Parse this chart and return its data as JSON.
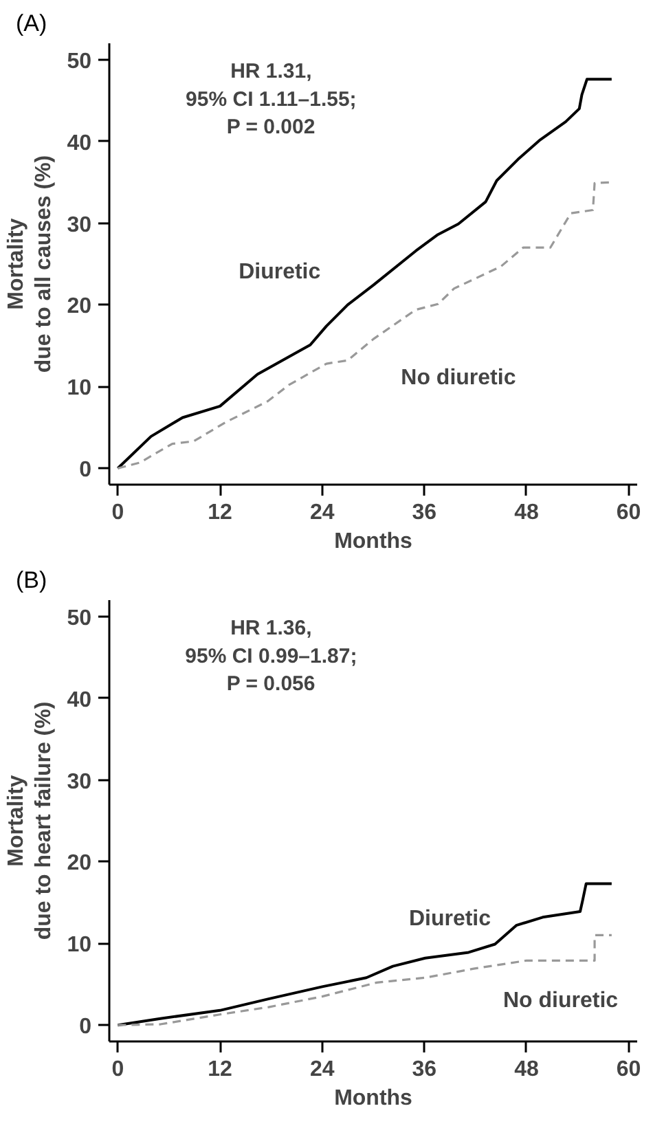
{
  "chart_data": [
    {
      "type": "line",
      "title": "(A)",
      "xlabel": "Months",
      "ylabel": "Mortality\ndue to all causes (%)",
      "annotations": [
        "HR 1.31,\n95% CI 1.11–1.55;\nP = 0.002"
      ],
      "xlim": [
        -1,
        61
      ],
      "xticks": [
        0,
        12,
        24,
        36,
        48,
        60
      ],
      "ylim": [
        -2,
        52
      ],
      "yticks": [
        0,
        10,
        20,
        30,
        40,
        50
      ],
      "legend": false,
      "grid": false,
      "series": [
        {
          "name": "Diuretic",
          "color": "#000000",
          "line_style": "solid",
          "x": [
            0,
            3.9,
            7.6,
            12,
            16.4,
            22.6,
            24.5,
            27,
            30,
            35,
            37.6,
            40,
            43.2,
            44.5,
            47,
            49.5,
            52.6,
            54.2,
            54.5,
            55.1,
            58
          ],
          "values": [
            0,
            3.9,
            6.2,
            7.6,
            11.5,
            15.1,
            17.4,
            20,
            22.4,
            26.6,
            28.6,
            29.9,
            32.6,
            35.2,
            37.8,
            40.1,
            42.4,
            44,
            45.7,
            47.6,
            47.6
          ]
        },
        {
          "name": "No diuretic",
          "color": "#999999",
          "line_style": "dashed",
          "x": [
            0,
            2.6,
            6.4,
            8.9,
            12.6,
            17.6,
            20.1,
            24.5,
            27,
            30,
            35,
            37.6,
            39.5,
            45,
            47.6,
            50.8,
            53.2,
            55.8,
            56,
            58
          ],
          "values": [
            0,
            0.7,
            3,
            3.3,
            5.6,
            8.2,
            10.2,
            12.8,
            13.2,
            15.8,
            19.4,
            20.1,
            22,
            24.7,
            27,
            27,
            31.2,
            31.6,
            34.9,
            35
          ]
        }
      ]
    },
    {
      "type": "line",
      "title": "(B)",
      "xlabel": "Months",
      "ylabel": "Mortality\ndue to heart failure (%)",
      "annotations": [
        "HR 1.36,\n95% CI 0.99–1.87;\nP = 0.056"
      ],
      "xlim": [
        -1,
        61
      ],
      "xticks": [
        0,
        12,
        24,
        36,
        48,
        60
      ],
      "ylim": [
        -2,
        52
      ],
      "yticks": [
        0,
        10,
        20,
        30,
        40,
        50
      ],
      "legend": false,
      "grid": false,
      "series": [
        {
          "name": "Diuretic",
          "color": "#000000",
          "line_style": "solid",
          "x": [
            0,
            5,
            12,
            17.7,
            24,
            29.2,
            32.3,
            36.1,
            41.2,
            44.3,
            46.8,
            49.9,
            54.3,
            54.6,
            55,
            58
          ],
          "values": [
            0,
            0.8,
            1.8,
            3.2,
            4.7,
            5.8,
            7.2,
            8.2,
            8.9,
            9.9,
            12.2,
            13.2,
            13.9,
            15.3,
            17.3,
            17.3
          ]
        },
        {
          "name": "No diuretic",
          "color": "#999999",
          "line_style": "dashed",
          "x": [
            0,
            5,
            12,
            17.7,
            24,
            30.4,
            36.1,
            41.8,
            48,
            56,
            56,
            58
          ],
          "values": [
            0,
            0.1,
            1.3,
            2.2,
            3.5,
            5.2,
            5.8,
            6.9,
            7.9,
            7.9,
            11,
            11
          ]
        }
      ]
    }
  ]
}
